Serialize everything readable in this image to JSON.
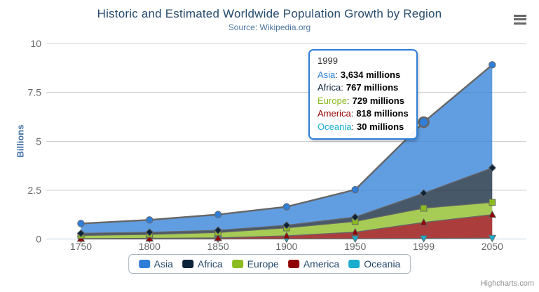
{
  "chart_data": {
    "type": "area",
    "stacking": "normal",
    "title": "Historic and Estimated Worldwide Population Growth by Region",
    "subtitle": "Source: Wikipedia.org",
    "categories": [
      "1750",
      "1800",
      "1850",
      "1900",
      "1950",
      "1999",
      "2050"
    ],
    "xlabel": "",
    "ylabel": "Billions",
    "unit": "millions",
    "ylim": [
      0,
      10
    ],
    "yticks": [
      0,
      2.5,
      5,
      7.5,
      10
    ],
    "grid": true,
    "legend_position": "bottom",
    "line_color": "#666666",
    "grid_color": "#D0D0D0",
    "axis_line_color": "#C0D0E0",
    "series": [
      {
        "name": "Asia",
        "color": "#2f7ed8",
        "marker": "circle",
        "values": [
          502,
          635,
          809,
          947,
          1402,
          3634,
          5268
        ]
      },
      {
        "name": "Africa",
        "color": "#0d233a",
        "marker": "diamond",
        "values": [
          106,
          107,
          111,
          133,
          221,
          767,
          1766
        ]
      },
      {
        "name": "Europe",
        "color": "#8bbc21",
        "marker": "square",
        "values": [
          163,
          203,
          276,
          408,
          547,
          729,
          628
        ]
      },
      {
        "name": "America",
        "color": "#910000",
        "marker": "triangle",
        "values": [
          18,
          31,
          54,
          156,
          339,
          818,
          1201
        ]
      },
      {
        "name": "Oceania",
        "color": "#1aadce",
        "marker": "triangle-down",
        "values": [
          2,
          2,
          2,
          6,
          13,
          30,
          46
        ]
      }
    ],
    "hover_point": {
      "series": "Asia",
      "category": "1999",
      "category_index": 5
    }
  },
  "tooltip": {
    "header": "1999",
    "separator": ":",
    "rows": [
      {
        "name": "Asia",
        "value": "3,634 millions"
      },
      {
        "name": "Africa",
        "value": "767 millions"
      },
      {
        "name": "Europe",
        "value": "729 millions"
      },
      {
        "name": "America",
        "value": "818 millions"
      },
      {
        "name": "Oceania",
        "value": "30 millions"
      }
    ]
  },
  "legend": {
    "items": [
      "Asia",
      "Africa",
      "Europe",
      "America",
      "Oceania"
    ]
  },
  "credits": "Highcharts.com"
}
